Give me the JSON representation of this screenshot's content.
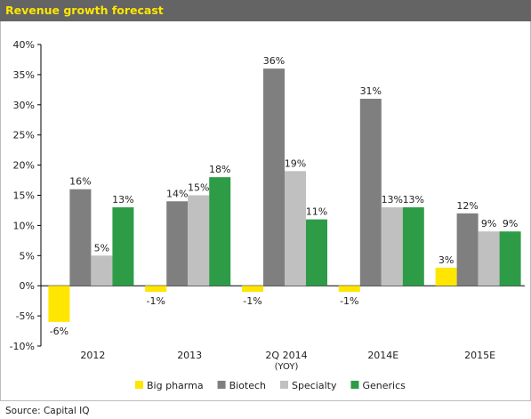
{
  "title": "Revenue growth forecast",
  "source": "Source: Capital IQ",
  "colors": {
    "title_bg": "#646464",
    "title_text": "#ffe600",
    "Big pharma": "#ffe600",
    "Biotech": "#7f7f7f",
    "Specialty": "#c0c0c0",
    "Generics": "#2e9c47"
  },
  "chart_data": {
    "type": "bar",
    "title": "Revenue growth forecast",
    "categories": [
      "2012",
      "2013",
      "2Q 2014\n(YOY)",
      "2014E",
      "2015E"
    ],
    "series": [
      {
        "name": "Big pharma",
        "values": [
          -6,
          -1,
          -1,
          -1,
          3
        ],
        "labels": [
          "-6%",
          "-1%",
          "-1%",
          "-1%",
          "3%"
        ]
      },
      {
        "name": "Biotech",
        "values": [
          16,
          14,
          36,
          31,
          12
        ],
        "labels": [
          "16%",
          "14%",
          "36%",
          "31%",
          "12%"
        ]
      },
      {
        "name": "Specialty",
        "values": [
          5,
          15,
          19,
          13,
          9
        ],
        "labels": [
          "5%",
          "15%",
          "19%",
          "13%",
          "9%"
        ]
      },
      {
        "name": "Generics",
        "values": [
          13,
          18,
          11,
          13,
          9
        ],
        "labels": [
          "13%",
          "18%",
          "11%",
          "13%",
          "9%"
        ]
      }
    ],
    "ylim": [
      -10,
      40
    ],
    "yticks": [
      "-10%",
      "-5%",
      "0%",
      "5%",
      "10%",
      "15%",
      "20%",
      "25%",
      "30%",
      "35%",
      "40%"
    ],
    "grid": false,
    "legend": "bottom"
  }
}
